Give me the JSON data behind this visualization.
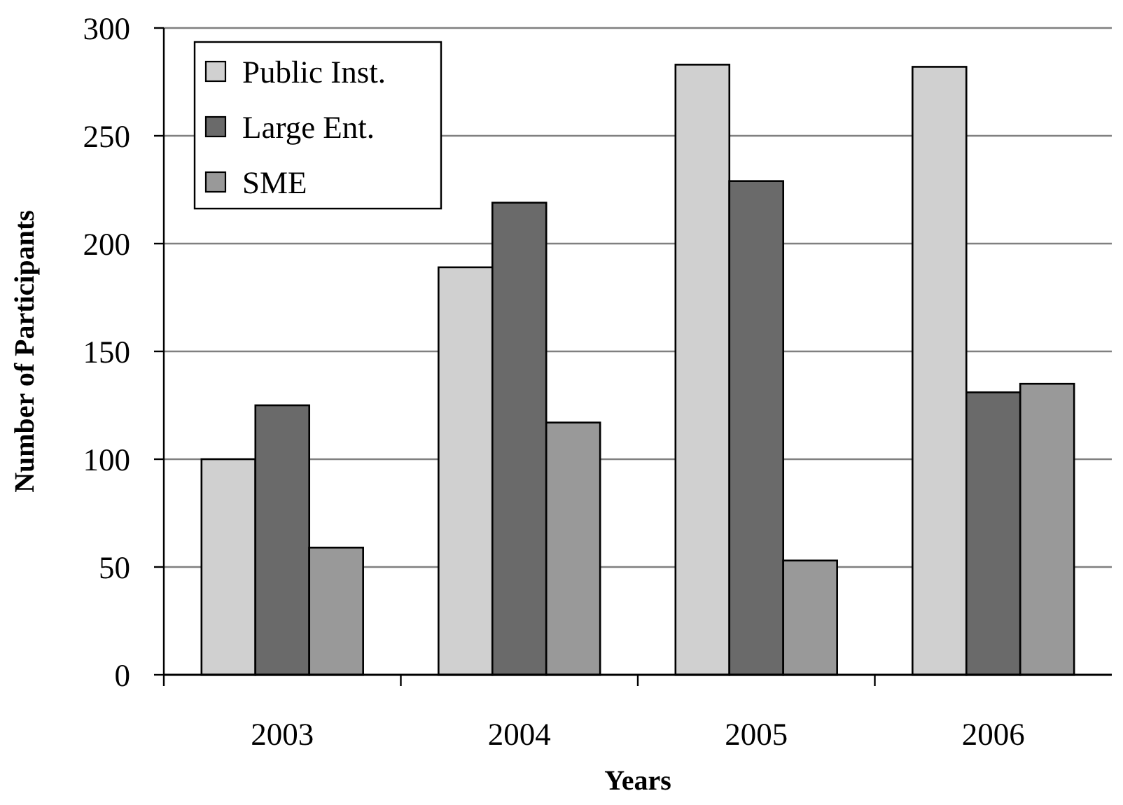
{
  "chart_data": {
    "type": "bar",
    "xlabel": "Years",
    "ylabel": "Number of Participants",
    "categories": [
      "2003",
      "2004",
      "2005",
      "2006"
    ],
    "series": [
      {
        "name": "Public Inst.",
        "color": "#d0d0d0",
        "values": [
          100,
          189,
          283,
          282
        ]
      },
      {
        "name": "Large Ent.",
        "color": "#6a6a6a",
        "values": [
          125,
          219,
          229,
          131
        ]
      },
      {
        "name": "SME",
        "color": "#999999",
        "values": [
          59,
          117,
          53,
          135
        ]
      }
    ],
    "ylim": [
      0,
      300
    ],
    "yticks": [
      0,
      50,
      100,
      150,
      200,
      250,
      300
    ],
    "grid": "y",
    "legend": "top left"
  }
}
